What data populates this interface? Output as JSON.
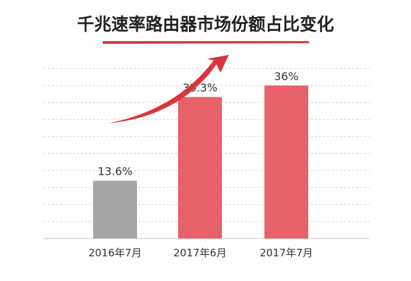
{
  "chart_data": {
    "type": "bar",
    "title": "千兆速率路由器市场份额占比变化",
    "categories": [
      "2016年7月",
      "2017年6月",
      "2017年7月"
    ],
    "values": [
      13.6,
      33.3,
      36
    ],
    "data_labels": [
      "13.6%",
      "33.3%",
      "36%"
    ],
    "xlabel": "",
    "ylabel": "",
    "ylim": [
      0,
      40
    ],
    "grid": true,
    "legend": "none",
    "colors": {
      "bars": [
        "#a6a6a6",
        "#e8626a",
        "#e8626a"
      ],
      "title_underline": "#d9363e",
      "trend_arrow": "#d9363e",
      "grid": "#d0d0d0"
    }
  }
}
